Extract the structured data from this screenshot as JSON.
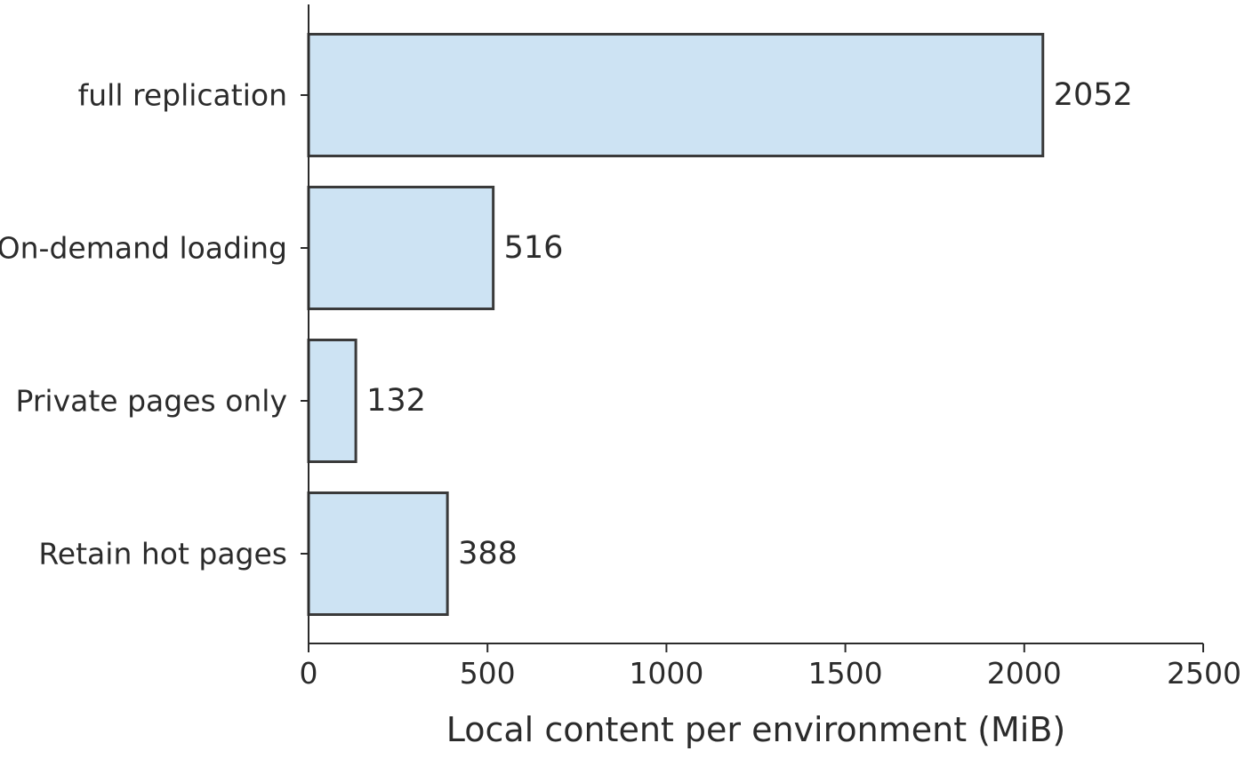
{
  "chart_data": {
    "type": "bar",
    "orientation": "horizontal",
    "title": "",
    "xlabel": "Local content per environment (MiB)",
    "ylabel": "",
    "categories": [
      "full replication",
      "On-demand loading",
      "Private pages only",
      "Retain hot pages"
    ],
    "values": [
      2052,
      516,
      132,
      388
    ],
    "data_labels": [
      "2052",
      "516",
      "132",
      "388"
    ],
    "xlim": [
      0,
      2500
    ],
    "xticks": [
      0,
      500,
      1000,
      1500,
      2000,
      2500
    ],
    "xtick_labels": [
      "0",
      "500",
      "1000",
      "1500",
      "2000",
      "2500"
    ],
    "grid": false,
    "legend": "none",
    "colors": {
      "bar_fill": "#cde3f3",
      "bar_stroke": "#3a3a3a",
      "axis": "#2b2b2b",
      "text": "#2b2b2b"
    }
  }
}
